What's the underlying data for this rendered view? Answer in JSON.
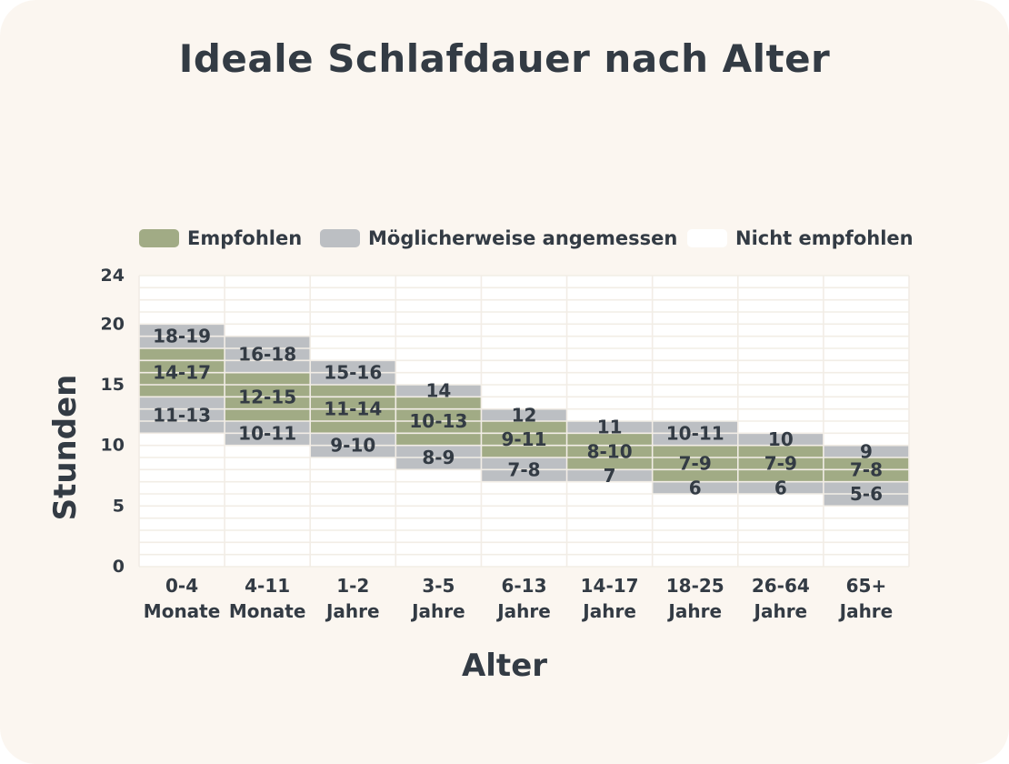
{
  "title": "Ideale Schlafdauer nach Alter",
  "legend": [
    {
      "label": "Empfohlen",
      "color": "#a1ab85"
    },
    {
      "label": "Möglicherweise angemessen",
      "color": "#bcbfc3"
    },
    {
      "label": "Nicht empfohlen",
      "color": "#ffffff"
    }
  ],
  "chart_data": {
    "type": "bar",
    "title": "Ideale Schlafdauer nach Alter",
    "xlabel": "Alter",
    "ylabel": "Stunden",
    "ylim": [
      0,
      24
    ],
    "yticks": [
      0,
      5,
      10,
      15,
      20,
      24
    ],
    "grid": true,
    "legend_position": "top",
    "categories": [
      [
        "0-4",
        "Monate"
      ],
      [
        "4-11",
        "Monate"
      ],
      [
        "1-2",
        "Jahre"
      ],
      [
        "3-5",
        "Jahre"
      ],
      [
        "6-13",
        "Jahre"
      ],
      [
        "14-17",
        "Jahre"
      ],
      [
        "18-25",
        "Jahre"
      ],
      [
        "26-64",
        "Jahre"
      ],
      [
        "65+",
        "Jahre"
      ]
    ],
    "groups": [
      {
        "low": [
          11,
          13
        ],
        "rec": [
          14,
          17
        ],
        "high": [
          18,
          19
        ],
        "low_label": "11-13",
        "rec_label": "14-17",
        "high_label": "18-19"
      },
      {
        "low": [
          10,
          11
        ],
        "rec": [
          12,
          15
        ],
        "high": [
          16,
          18
        ],
        "low_label": "10-11",
        "rec_label": "12-15",
        "high_label": "16-18"
      },
      {
        "low": [
          9,
          10
        ],
        "rec": [
          11,
          14
        ],
        "high": [
          15,
          16
        ],
        "low_label": "9-10",
        "rec_label": "11-14",
        "high_label": "15-16"
      },
      {
        "low": [
          8,
          9
        ],
        "rec": [
          10,
          13
        ],
        "high": [
          14,
          14
        ],
        "low_label": "8-9",
        "rec_label": "10-13",
        "high_label": "14"
      },
      {
        "low": [
          7,
          8
        ],
        "rec": [
          9,
          11
        ],
        "high": [
          12,
          12
        ],
        "low_label": "7-8",
        "rec_label": "9-11",
        "high_label": "12"
      },
      {
        "low": [
          7,
          7
        ],
        "rec": [
          8,
          10
        ],
        "high": [
          11,
          11
        ],
        "low_label": "7",
        "rec_label": "8-10",
        "high_label": "11"
      },
      {
        "low": [
          6,
          6
        ],
        "rec": [
          7,
          9
        ],
        "high": [
          10,
          11
        ],
        "low_label": "6",
        "rec_label": "7-9",
        "high_label": "10-11"
      },
      {
        "low": [
          6,
          6
        ],
        "rec": [
          7,
          9
        ],
        "high": [
          10,
          10
        ],
        "low_label": "6",
        "rec_label": "7-9",
        "high_label": "10"
      },
      {
        "low": [
          5,
          6
        ],
        "rec": [
          7,
          8
        ],
        "high": [
          9,
          9
        ],
        "low_label": "5-6",
        "rec_label": "7-8",
        "high_label": "9"
      }
    ]
  }
}
